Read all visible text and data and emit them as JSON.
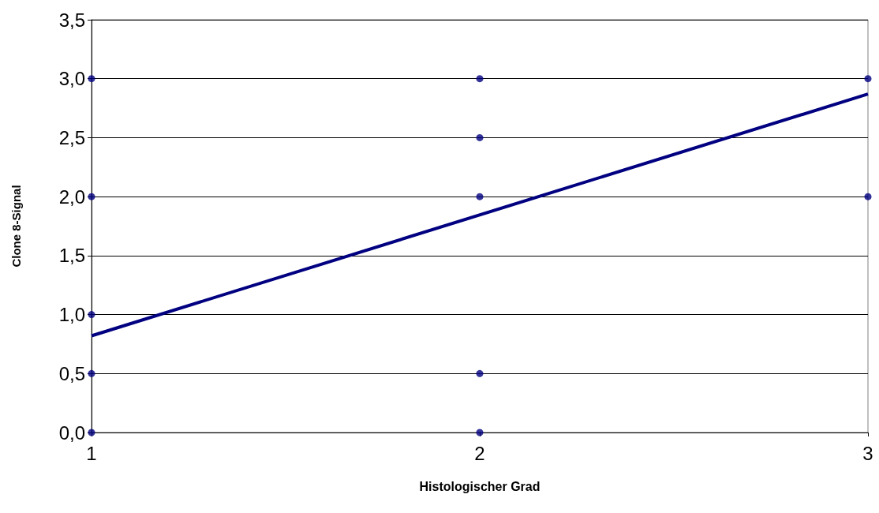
{
  "chart_data": {
    "type": "scatter",
    "xlabel": "Histologischer Grad",
    "ylabel": "Clone 8-Signal",
    "series": [
      {
        "color": "#000080",
        "marker": "circle",
        "x": [
          1,
          1,
          1,
          1,
          1,
          2,
          2,
          2,
          2,
          2,
          3,
          3
        ],
        "values": [
          0,
          0.5,
          1,
          2,
          3,
          0,
          0.5,
          2,
          2.5,
          3,
          2,
          3
        ]
      },
      {
        "type": "line",
        "color": "#000080",
        "marker": "none",
        "line_style": "solid",
        "x": [
          1,
          3
        ],
        "values": [
          0.82,
          2.87
        ]
      }
    ],
    "xlim": [
      1,
      3
    ],
    "xticks": [
      1,
      2,
      3
    ],
    "ylim": [
      0,
      3.5
    ],
    "yticks": [
      {
        "value": 0,
        "label": "0,0"
      },
      {
        "value": 0.5,
        "label": "0,5"
      },
      {
        "value": 1,
        "label": "1,0"
      },
      {
        "value": 1.5,
        "label": "1,5"
      },
      {
        "value": 2,
        "label": "2,0"
      },
      {
        "value": 2.5,
        "label": "2,5"
      },
      {
        "value": 3,
        "label": "3,0"
      },
      {
        "value": 3.5,
        "label": "3,5"
      }
    ],
    "grid": "y"
  }
}
